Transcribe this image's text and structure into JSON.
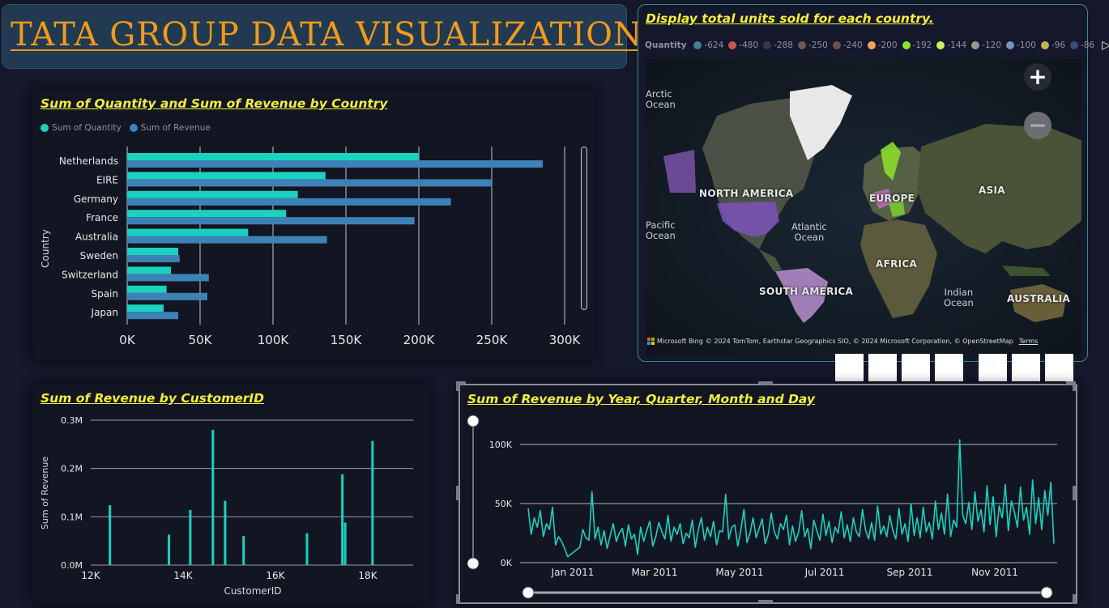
{
  "header": {
    "title": "TATA GROUP DATA VISUALIZATION :"
  },
  "country_chart": {
    "title": "Sum of Quantity and Sum of Revenue by Country",
    "legend": [
      {
        "name": "Sum of Quantity",
        "color": "#19d2c0"
      },
      {
        "name": "Sum of Revenue",
        "color": "#3d82b6"
      }
    ],
    "ylabel": "Country",
    "x_ticks": [
      "0K",
      "50K",
      "100K",
      "150K",
      "200K",
      "250K",
      "300K"
    ]
  },
  "map": {
    "title": "Display total units sold for each country.",
    "legend_label": "Quantity",
    "legend_items": [
      {
        "value": "-624",
        "color": "#3d7f94"
      },
      {
        "value": "-480",
        "color": "#c95250"
      },
      {
        "value": "-288",
        "color": "#383a40"
      },
      {
        "value": "-250",
        "color": "#6b5a55"
      },
      {
        "value": "-240",
        "color": "#6d5050"
      },
      {
        "value": "-200",
        "color": "#f2a25a"
      },
      {
        "value": "-192",
        "color": "#8fe22a"
      },
      {
        "value": "-144",
        "color": "#c8f25a"
      },
      {
        "value": "-120",
        "color": "#9a9690"
      },
      {
        "value": "-100",
        "color": "#7a8fc8"
      },
      {
        "value": "-96",
        "color": "#c7b45a"
      },
      {
        "value": "-86",
        "color": "#3a4a80"
      }
    ],
    "zoom_in": "+",
    "zoom_out": "−",
    "labels": {
      "arctic": "Arctic\nOcean",
      "north_america": "NORTH AMERICA",
      "europe": "EUROPE",
      "asia": "ASIA",
      "pacific": "Pacific\nOcean",
      "atlantic": "Atlantic\nOcean",
      "africa": "AFRICA",
      "south_america": "SOUTH AMERICA",
      "indian": "Indian\nOcean",
      "australia": "AUSTRALIA"
    },
    "attribution": "Microsoft Bing",
    "copyright": "© 2024 TomTom, Earthstar Geographics SIO, © 2024 Microsoft Corporation, © OpenStreetMap",
    "terms": "Terms"
  },
  "customer_chart": {
    "title": "Sum of Revenue by CustomerID",
    "xlabel": "CustomerID",
    "ylabel": "Sum of Revenue",
    "y_ticks": [
      "0.0M",
      "0.1M",
      "0.2M",
      "0.3M"
    ],
    "x_ticks": [
      "12K",
      "14K",
      "16K",
      "18K"
    ]
  },
  "time_chart": {
    "title": "Sum of Revenue by Year, Quarter, Month and Day",
    "y_ticks": [
      "0K",
      "50K",
      "100K"
    ],
    "x_ticks": [
      "Jan 2011",
      "Mar 2011",
      "May 2011",
      "Jul 2011",
      "Sep 2011",
      "Nov 2011"
    ]
  },
  "chart_data": [
    {
      "type": "bar",
      "title": "Sum of Quantity and Sum of Revenue by Country",
      "ylabel": "Country",
      "categories": [
        "Netherlands",
        "EIRE",
        "Germany",
        "France",
        "Australia",
        "Sweden",
        "Switzerland",
        "Spain",
        "Japan"
      ],
      "series": [
        {
          "name": "Sum of Quantity",
          "values": [
            200000,
            136000,
            117000,
            109000,
            83000,
            35000,
            30000,
            27000,
            25000
          ]
        },
        {
          "name": "Sum of Revenue",
          "values": [
            285000,
            250000,
            222000,
            197000,
            137000,
            36000,
            56000,
            55000,
            35000
          ]
        }
      ],
      "xlim": [
        0,
        300000
      ],
      "grid": true,
      "legend": "top-left"
    },
    {
      "type": "bar",
      "title": "Sum of Revenue by CustomerID",
      "xlabel": "CustomerID",
      "ylabel": "Sum of Revenue",
      "x": [
        12415,
        13694,
        14156,
        14646,
        14911,
        15311,
        16684,
        17450,
        17511,
        18102
      ],
      "values": [
        124000,
        63000,
        114000,
        280000,
        133000,
        60000,
        66000,
        188000,
        88000,
        257000
      ],
      "xlim": [
        12000,
        19000
      ],
      "ylim": [
        0,
        300000
      ],
      "grid": true
    },
    {
      "type": "line",
      "title": "Sum of Revenue by Year, Quarter, Month and Day",
      "x_range": [
        "2010-12-01",
        "2011-12-09"
      ],
      "ylim": [
        0,
        110000
      ],
      "values": [
        46000,
        24000,
        38000,
        30000,
        44000,
        22000,
        33000,
        28000,
        47000,
        15000,
        22000,
        18000,
        12000,
        5000,
        7000,
        9000,
        11000,
        13000,
        28000,
        21000,
        19000,
        60000,
        20000,
        30000,
        15000,
        27000,
        12000,
        23000,
        33000,
        18000,
        25000,
        29000,
        14000,
        32000,
        20000,
        24000,
        7000,
        30000,
        18000,
        27000,
        35000,
        14000,
        22000,
        34000,
        26000,
        20000,
        40000,
        18000,
        30000,
        24000,
        33000,
        16000,
        25000,
        21000,
        36000,
        13000,
        28000,
        38000,
        19000,
        30000,
        22000,
        35000,
        15000,
        27000,
        26000,
        58000,
        20000,
        30000,
        32000,
        14000,
        28000,
        45000,
        17000,
        25000,
        38000,
        21000,
        29000,
        37000,
        16000,
        24000,
        42000,
        26000,
        20000,
        33000,
        28000,
        40000,
        15000,
        31000,
        18000,
        26000,
        44000,
        22000,
        29000,
        12000,
        36000,
        27000,
        19000,
        41000,
        23000,
        35000,
        17000,
        30000,
        25000,
        43000,
        21000,
        32000,
        18000,
        38000,
        26000,
        22000,
        45000,
        28000,
        20000,
        34000,
        19000,
        48000,
        24000,
        31000,
        22000,
        40000,
        27000,
        20000,
        46000,
        24000,
        33000,
        18000,
        50000,
        23000,
        38000,
        21000,
        47000,
        26000,
        34000,
        20000,
        52000,
        28000,
        42000,
        24000,
        58000,
        22000,
        36000,
        30000,
        104000,
        40000,
        33000,
        51000,
        28000,
        60000,
        35000,
        45000,
        26000,
        65000,
        32000,
        56000,
        22000,
        48000,
        38000,
        66000,
        27000,
        52000,
        43000,
        30000,
        64000,
        36000,
        47000,
        24000,
        70000,
        33000,
        55000,
        28000,
        61000,
        40000,
        68000,
        16000
      ]
    }
  ]
}
